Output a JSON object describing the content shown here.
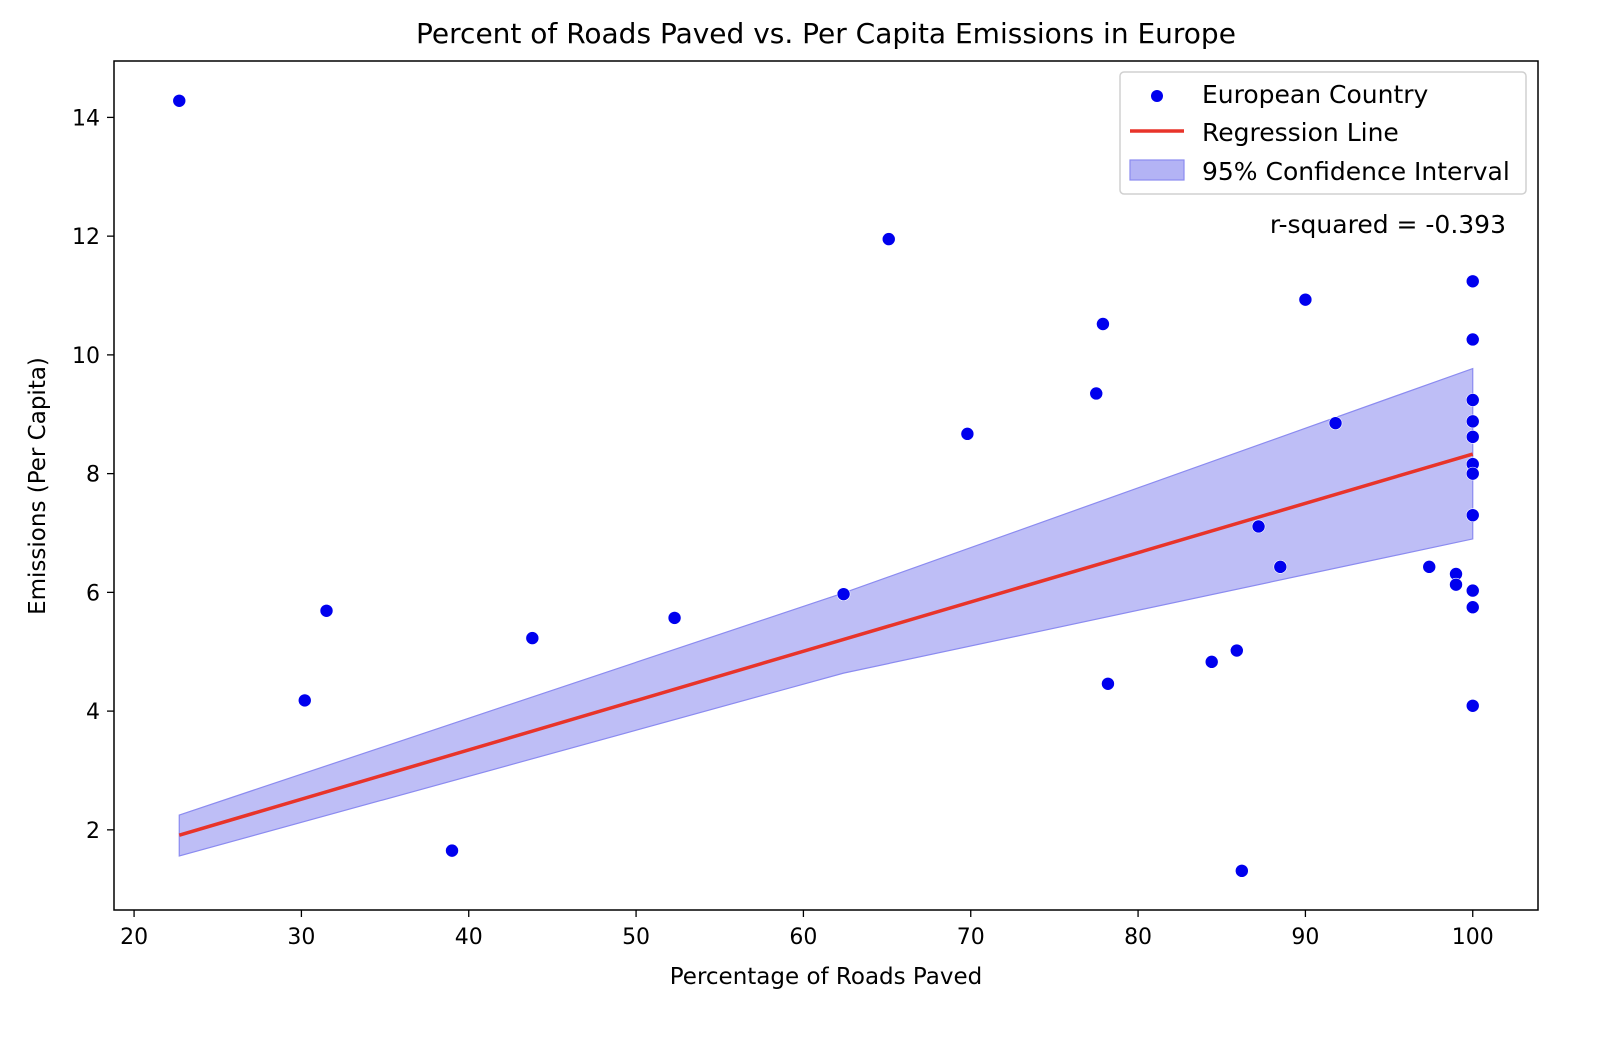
{
  "chart_data": {
    "type": "scatter",
    "title": "Percent of Roads Paved vs. Per Capita Emissions in Europe",
    "xlabel": "Percentage of Roads Paved",
    "ylabel": "Emissions (Per Capita)",
    "xlim": [
      18.8,
      103.9
    ],
    "ylim": [
      0.65,
      14.95
    ],
    "xticks": [
      20,
      30,
      40,
      50,
      60,
      70,
      80,
      90,
      100
    ],
    "yticks": [
      2,
      4,
      6,
      8,
      10,
      12,
      14
    ],
    "grid": false,
    "legend_position": "top-right",
    "legend": {
      "scatter": "European Country",
      "line": "Regression Line",
      "band": "95% Confidence Interval"
    },
    "annotation": "r-squared = -0.393",
    "colors": {
      "points": "#0000ee",
      "regression": "#e8342a",
      "band_fill": "#b3b3f5",
      "band_edge": "#8b8bf0"
    },
    "series": [
      {
        "name": "European Country",
        "points": [
          {
            "x": 22.7,
            "y": 14.28
          },
          {
            "x": 30.2,
            "y": 4.18
          },
          {
            "x": 31.5,
            "y": 5.69
          },
          {
            "x": 39.0,
            "y": 1.65
          },
          {
            "x": 43.8,
            "y": 5.23
          },
          {
            "x": 52.3,
            "y": 5.57
          },
          {
            "x": 62.4,
            "y": 5.97
          },
          {
            "x": 65.1,
            "y": 11.95
          },
          {
            "x": 69.8,
            "y": 8.67
          },
          {
            "x": 77.5,
            "y": 9.35
          },
          {
            "x": 77.9,
            "y": 10.52
          },
          {
            "x": 78.2,
            "y": 4.46
          },
          {
            "x": 84.4,
            "y": 4.83
          },
          {
            "x": 85.9,
            "y": 5.02
          },
          {
            "x": 86.2,
            "y": 1.31
          },
          {
            "x": 87.2,
            "y": 7.11
          },
          {
            "x": 88.5,
            "y": 6.43
          },
          {
            "x": 90.0,
            "y": 10.93
          },
          {
            "x": 91.8,
            "y": 8.85
          },
          {
            "x": 97.4,
            "y": 6.43
          },
          {
            "x": 99.0,
            "y": 6.31
          },
          {
            "x": 99.0,
            "y": 6.13
          },
          {
            "x": 100.0,
            "y": 11.24
          },
          {
            "x": 100.0,
            "y": 10.26
          },
          {
            "x": 100.0,
            "y": 9.24
          },
          {
            "x": 100.0,
            "y": 8.88
          },
          {
            "x": 100.0,
            "y": 8.62
          },
          {
            "x": 100.0,
            "y": 8.16
          },
          {
            "x": 100.0,
            "y": 8.0
          },
          {
            "x": 100.0,
            "y": 7.3
          },
          {
            "x": 100.0,
            "y": 6.03
          },
          {
            "x": 100.0,
            "y": 5.75
          },
          {
            "x": 100.0,
            "y": 4.09
          }
        ]
      }
    ],
    "regression": {
      "name": "Regression Line",
      "x": [
        22.7,
        100.0
      ],
      "y": [
        1.91,
        8.33
      ]
    },
    "confidence_band": {
      "name": "95% Confidence Interval",
      "x": [
        22.7,
        62.4,
        100.0
      ],
      "upper": [
        2.25,
        5.99,
        9.77
      ],
      "lower": [
        1.56,
        4.64,
        6.9
      ]
    }
  }
}
